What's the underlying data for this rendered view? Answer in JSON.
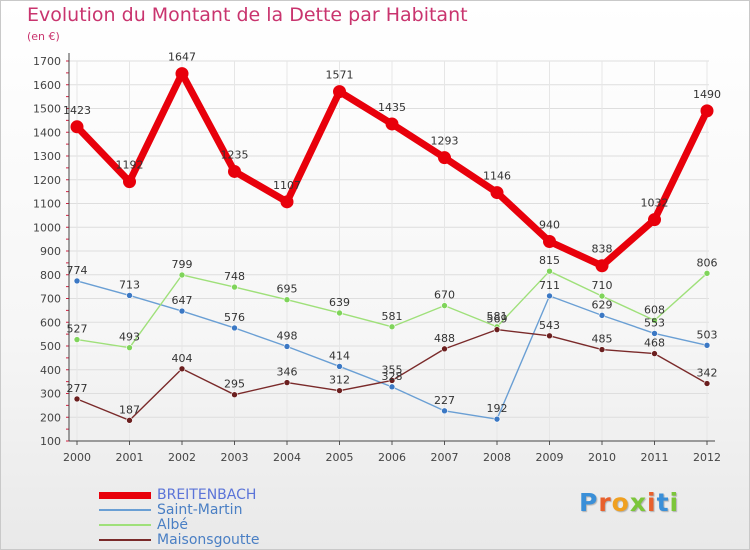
{
  "title": "Evolution du Montant de la Dette par Habitant",
  "subtitle": "(en €)",
  "brand": "Proxiti",
  "colors": {
    "title": "#c9346e",
    "axis": "#555555",
    "grid": "#e0e0e0"
  },
  "chart_data": {
    "type": "line",
    "x": [
      "2000",
      "2001",
      "2002",
      "2003",
      "2004",
      "2005",
      "2006",
      "2007",
      "2008",
      "2009",
      "2010",
      "2011",
      "2012"
    ],
    "ylim": [
      100,
      1700
    ],
    "yticks": [
      100,
      200,
      300,
      400,
      500,
      600,
      700,
      800,
      900,
      1000,
      1100,
      1200,
      1300,
      1400,
      1500,
      1600,
      1700
    ],
    "grid": true,
    "legend_position": "bottom-left",
    "series": [
      {
        "name": "BREITENBACH",
        "color": "#e8000b",
        "point_color": "#e8000b",
        "label_color": "#333333",
        "emphasis": true,
        "values": [
          1423,
          1192,
          1647,
          1235,
          1107,
          1571,
          1435,
          1293,
          1146,
          940,
          838,
          1032,
          1490
        ]
      },
      {
        "name": "Saint-Martin",
        "color": "#6a9fd4",
        "point_color": "#3b78c4",
        "label_color": "#333333",
        "emphasis": false,
        "values": [
          774,
          713,
          647,
          576,
          498,
          414,
          328,
          227,
          192,
          711,
          629,
          553,
          503
        ]
      },
      {
        "name": "Albé",
        "color": "#9fe07a",
        "point_color": "#7fd45a",
        "label_color": "#333333",
        "emphasis": false,
        "values": [
          527,
          493,
          799,
          748,
          695,
          639,
          581,
          670,
          581,
          815,
          710,
          608,
          806
        ]
      },
      {
        "name": "Maisonsgoutte",
        "color": "#7a2a2a",
        "point_color": "#6b1f1f",
        "label_color": "#333333",
        "emphasis": false,
        "values": [
          277,
          187,
          404,
          295,
          346,
          312,
          355,
          488,
          569,
          543,
          485,
          468,
          342
        ]
      }
    ]
  }
}
